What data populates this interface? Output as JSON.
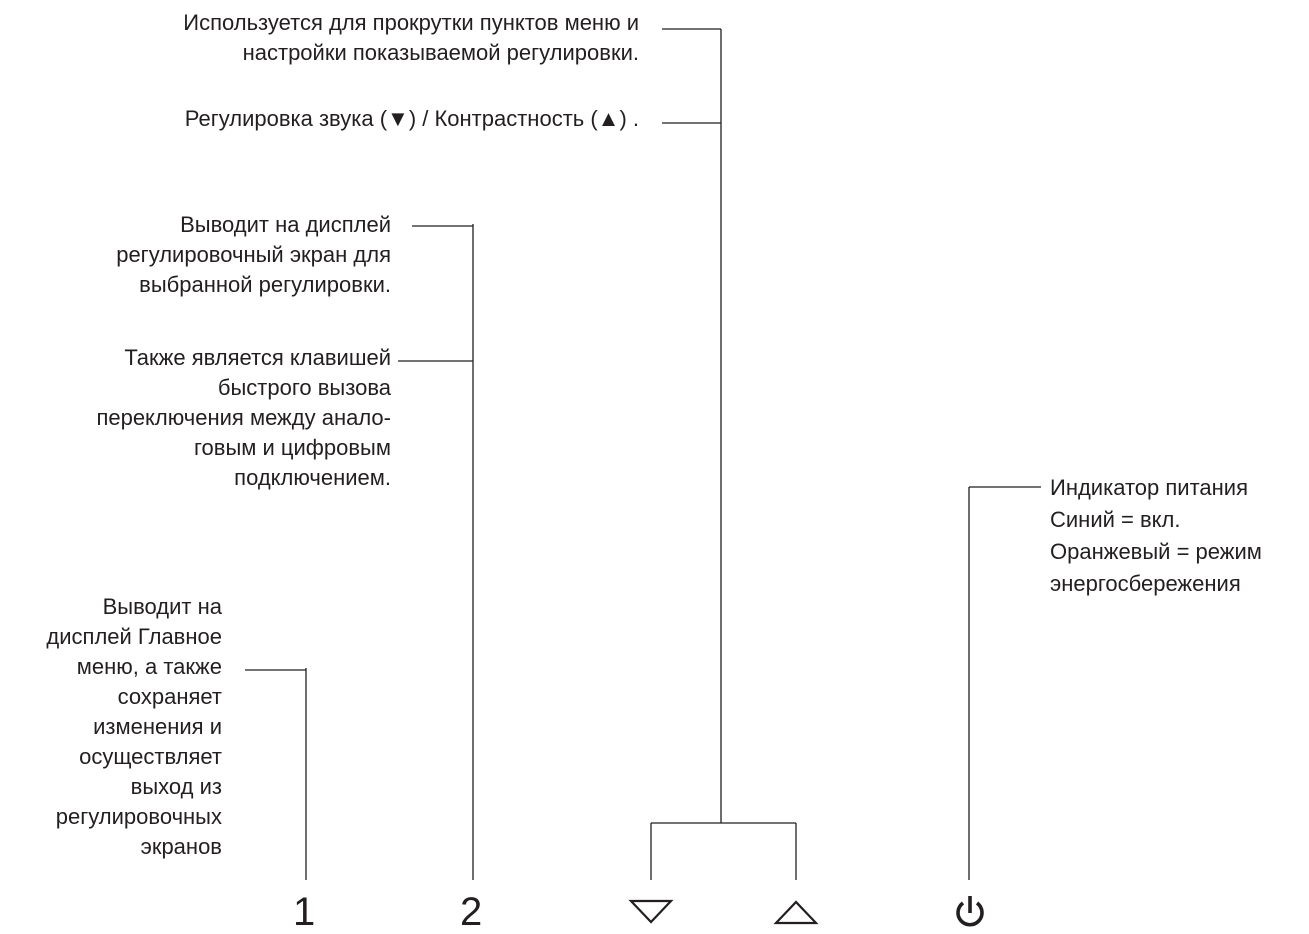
{
  "labels": {
    "scroll_menu": "Используется для прокрутки пунктов меню и\nнастройки показываемой регулировки.",
    "volume_contrast": "Регулировка звука (▼) / Контрастность  (▲) .",
    "display_adjust": "Выводит на дисплей\nрегулировочный экран для\nвыбранной регулировки.",
    "hotkey": "Также является клавишей\nбыстрого вызова\nпереключения между анало-\nговым и цифровым\nподключением.",
    "main_menu": "Выводит на\nдисплей Главное\nменю, а также\nсохраняет\nизменения и\nосуществляет\nвыход из\nрегулировочных\nэкранов",
    "power_indicator": "Индикатор питания\nСиний = вкл.\nОранжевый = режим\nэнергосбережения"
  },
  "keys": {
    "key1": "1",
    "key2": "2"
  },
  "icons": {
    "down": "down-triangle-icon",
    "up": "up-triangle-icon",
    "power": "power-icon"
  }
}
